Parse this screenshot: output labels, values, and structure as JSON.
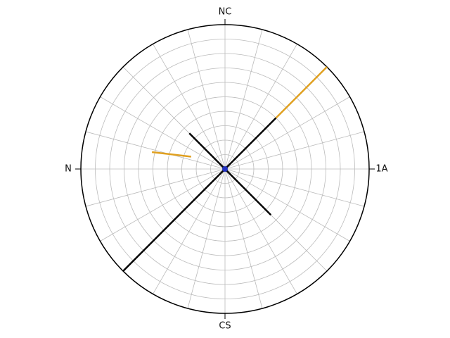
{
  "chart_data": {
    "type": "polar",
    "rlim": [
      0,
      1
    ],
    "rticks": [
      0.1,
      0.2,
      0.3,
      0.4,
      0.5,
      0.6,
      0.7,
      0.8,
      0.9,
      1
    ],
    "thetaticks": [
      0,
      15,
      30,
      45,
      60,
      75,
      90,
      105,
      120,
      135,
      150,
      165,
      180,
      195,
      210,
      225,
      240,
      255,
      270,
      285,
      300,
      315,
      330,
      345
    ],
    "theta_labels": [
      {
        "value": 90,
        "label": "NC"
      },
      {
        "value": 0,
        "label": "1A"
      },
      {
        "value": 270,
        "label": "CS"
      },
      {
        "value": 180,
        "label": "N"
      }
    ],
    "grid": true,
    "series": [
      {
        "color": "#000000",
        "theta": [
          225,
          45
        ],
        "r": [
          1,
          0.5
        ]
      },
      {
        "color": "#e0a020",
        "theta": [
          45,
          45
        ],
        "r": [
          0.5,
          1
        ]
      },
      {
        "color": "#000000",
        "theta": [
          135,
          315
        ],
        "r": [
          0.35,
          0.45
        ]
      },
      {
        "color": "#e0a020",
        "theta": [
          167,
          160
        ],
        "r": [
          0.52,
          0.25
        ]
      }
    ]
  }
}
